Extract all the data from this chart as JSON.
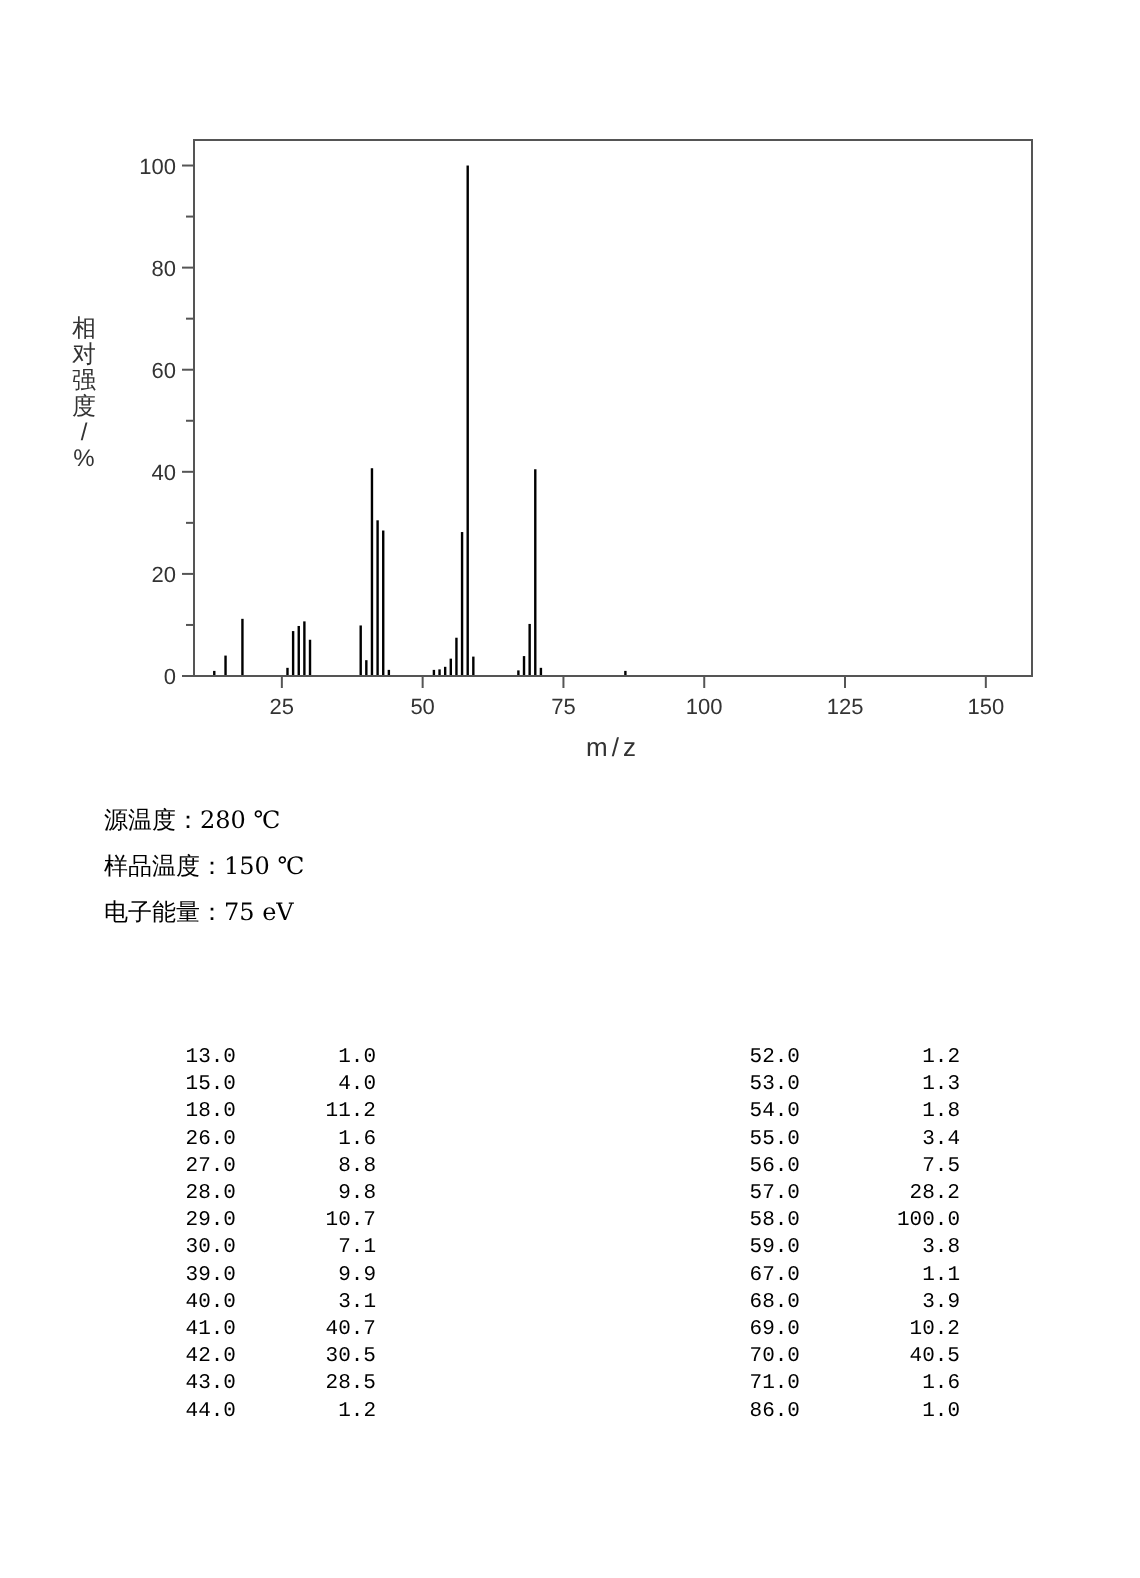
{
  "chart_data": [
    {
      "type": "bar",
      "xlabel": "m/z",
      "ylabel": "相对强度/%",
      "x": [
        13,
        15,
        18,
        26,
        27,
        28,
        29,
        30,
        39,
        40,
        41,
        42,
        43,
        44,
        52,
        53,
        54,
        55,
        56,
        57,
        58,
        59,
        67,
        68,
        69,
        70,
        71,
        86
      ],
      "values": [
        1.0,
        4.0,
        11.2,
        1.6,
        8.8,
        9.8,
        10.7,
        7.1,
        9.9,
        3.1,
        40.7,
        30.5,
        28.5,
        1.2,
        1.2,
        1.3,
        1.8,
        3.4,
        7.5,
        28.2,
        100.0,
        3.8,
        1.1,
        3.9,
        10.2,
        40.5,
        1.6,
        1.0
      ],
      "color": "#000000",
      "xlim": [
        9.4,
        158.2
      ],
      "ylim": [
        0,
        105
      ],
      "xticks": [
        25,
        50,
        75,
        100,
        125,
        150
      ],
      "yticks": [
        0,
        {
          "value": 10,
          "label": null
        },
        20,
        {
          "value": 30,
          "label": null
        },
        40,
        {
          "value": 50,
          "label": null
        },
        60,
        {
          "value": 70,
          "label": null
        },
        80,
        {
          "value": 90,
          "label": null
        },
        100
      ],
      "grid": false,
      "annotations": [
        "源温度：280 ℃",
        "样品温度：150 ℃",
        "电子能量：75 eV"
      ]
    },
    {
      "type": "other",
      "annotations": [
        "13.0",
        "1.0",
        "15.0",
        "4.0",
        "18.0",
        "11.2",
        "26.0",
        "1.6",
        "27.0",
        "8.8",
        "28.0",
        "9.8",
        "29.0",
        "10.7",
        "30.0",
        "7.1",
        "39.0",
        "9.9",
        "40.0",
        "3.1",
        "41.0",
        "40.7",
        "42.0",
        "30.5",
        "43.0",
        "28.5",
        "44.0",
        "1.2",
        "52.0",
        "1.2",
        "53.0",
        "1.3",
        "54.0",
        "1.8",
        "55.0",
        "3.4",
        "56.0",
        "7.5",
        "57.0",
        "28.2",
        "58.0",
        "100.0",
        "59.0",
        "3.8",
        "67.0",
        "1.1",
        "68.0",
        "3.9",
        "69.0",
        "10.2",
        "70.0",
        "40.5",
        "71.0",
        "1.6",
        "86.0",
        "1.0"
      ]
    }
  ]
}
